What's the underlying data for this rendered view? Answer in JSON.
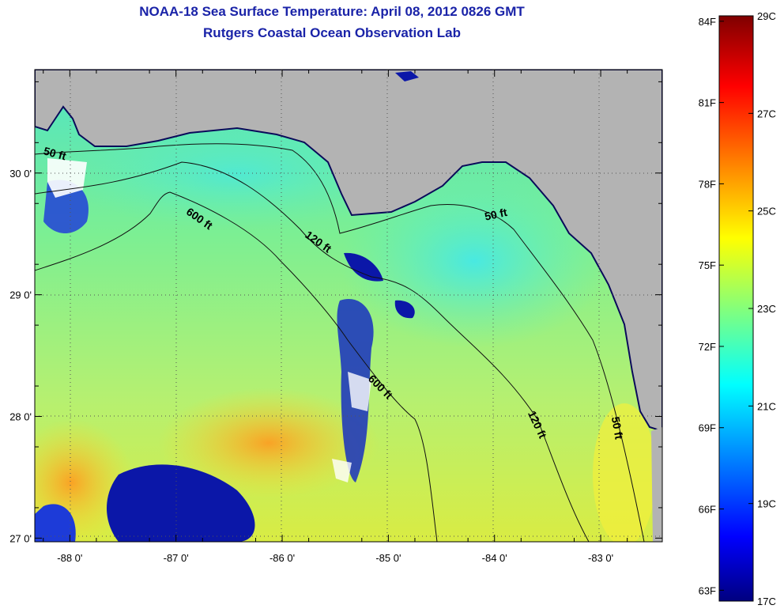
{
  "title": {
    "line1": "NOAA-18 Sea Surface Temperature:  April 08, 2012 0826 GMT",
    "line2": "Rutgers Coastal Ocean Observation Lab"
  },
  "map": {
    "lon_range": [
      -88.33,
      -82.42
    ],
    "lat_range": [
      26.97,
      30.85
    ],
    "lon_ticks": [
      {
        "value": -88,
        "label": "-88 0'"
      },
      {
        "value": -87,
        "label": "-87 0'"
      },
      {
        "value": -86,
        "label": "-86 0'"
      },
      {
        "value": -85,
        "label": "-85 0'"
      },
      {
        "value": -84,
        "label": "-84 0'"
      },
      {
        "value": -83,
        "label": "-83 0'"
      }
    ],
    "lat_ticks": [
      {
        "value": 30,
        "label": "30 0'"
      },
      {
        "value": 29,
        "label": "29 0'"
      },
      {
        "value": 28,
        "label": "28 0'"
      },
      {
        "value": 27,
        "label": "27 0'"
      }
    ],
    "land_color": "#b3b3b3",
    "isobath_labels": [
      {
        "text": "50 ft",
        "lon": -88.15,
        "lat": 30.13,
        "rot": 15
      },
      {
        "text": "600 ft",
        "lon": -86.8,
        "lat": 29.6,
        "rot": 35
      },
      {
        "text": "120 ft",
        "lon": -85.68,
        "lat": 29.41,
        "rot": 35
      },
      {
        "text": "50 ft",
        "lon": -83.98,
        "lat": 29.63,
        "rot": -12
      },
      {
        "text": "600 ft",
        "lon": -85.1,
        "lat": 28.22,
        "rot": 45
      },
      {
        "text": "120 ft",
        "lon": -83.63,
        "lat": 27.92,
        "rot": 65
      },
      {
        "text": "50 ft",
        "lon": -82.88,
        "lat": 27.9,
        "rot": 80
      }
    ]
  },
  "colorbar": {
    "min_c": 17,
    "max_c": 29,
    "labels_f": [
      "84F",
      "81F",
      "78F",
      "75F",
      "72F",
      "69F",
      "66F",
      "63F"
    ],
    "labels_c": [
      "29C",
      "27C",
      "25C",
      "23C",
      "21C",
      "19C",
      "17C"
    ],
    "stops": [
      "#00007f",
      "#0000ff",
      "#00ffff",
      "#ffff00",
      "#ff0000",
      "#7f0000"
    ]
  }
}
